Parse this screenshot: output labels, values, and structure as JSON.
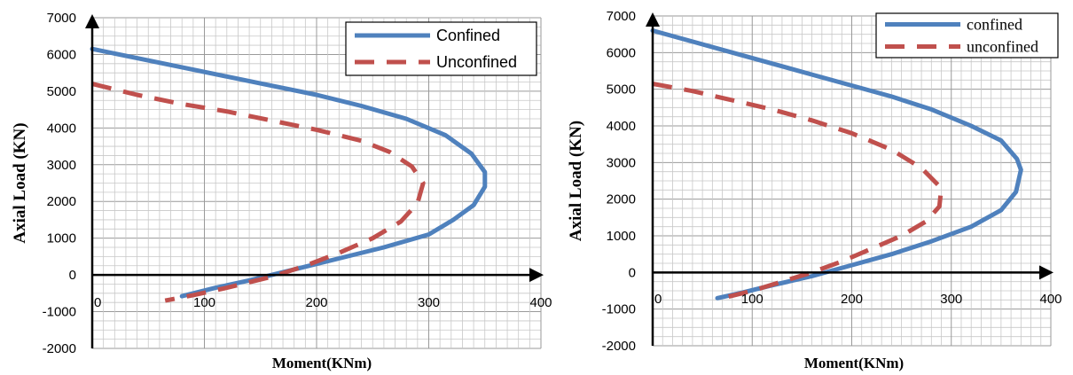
{
  "chart_data": [
    {
      "type": "line",
      "title": "",
      "xlabel": "Moment(KNm)",
      "ylabel": "Axial Load (KN)",
      "xlim": [
        0,
        400
      ],
      "ylim": [
        -2000,
        7000
      ],
      "xticks": [
        "0",
        "100",
        "200",
        "300",
        "400"
      ],
      "yticks": [
        "-2000",
        "-1000",
        "0",
        "1000",
        "2000",
        "3000",
        "4000",
        "5000",
        "6000",
        "7000"
      ],
      "grid": true,
      "legend_position": "top-right",
      "series": [
        {
          "name": "Confined",
          "color": "#4f81bd",
          "dash": "solid",
          "points": [
            [
              0,
              6150
            ],
            [
              40,
              5900
            ],
            [
              80,
              5650
            ],
            [
              120,
              5400
            ],
            [
              160,
              5150
            ],
            [
              200,
              4900
            ],
            [
              240,
              4600
            ],
            [
              280,
              4250
            ],
            [
              315,
              3800
            ],
            [
              338,
              3300
            ],
            [
              350,
              2800
            ],
            [
              350,
              2400
            ],
            [
              340,
              1900
            ],
            [
              322,
              1500
            ],
            [
              300,
              1100
            ],
            [
              260,
              750
            ],
            [
              220,
              450
            ],
            [
              180,
              150
            ],
            [
              140,
              -150
            ],
            [
              110,
              -350
            ],
            [
              80,
              -580
            ]
          ]
        },
        {
          "name": "Unconfined",
          "color": "#c0504d",
          "dash": "dashed",
          "points": [
            [
              0,
              5200
            ],
            [
              40,
              4900
            ],
            [
              80,
              4650
            ],
            [
              120,
              4450
            ],
            [
              160,
              4200
            ],
            [
              200,
              3950
            ],
            [
              240,
              3650
            ],
            [
              265,
              3350
            ],
            [
              285,
              2950
            ],
            [
              295,
              2500
            ],
            [
              290,
              1950
            ],
            [
              275,
              1450
            ],
            [
              250,
              1000
            ],
            [
              220,
              600
            ],
            [
              190,
              250
            ],
            [
              160,
              -50
            ],
            [
              120,
              -350
            ],
            [
              90,
              -550
            ],
            [
              65,
              -700
            ]
          ]
        }
      ]
    },
    {
      "type": "line",
      "title": "",
      "xlabel": "Moment(KNm)",
      "ylabel": "Axial Load (KN)",
      "xlim": [
        0,
        400
      ],
      "ylim": [
        -2000,
        7000
      ],
      "xticks": [
        "0",
        "100",
        "200",
        "300",
        "400"
      ],
      "yticks": [
        "-2000",
        "-1000",
        "0",
        "1000",
        "2000",
        "3000",
        "4000",
        "5000",
        "6000",
        "7000"
      ],
      "grid": true,
      "legend_position": "top-right",
      "series": [
        {
          "name": "confined",
          "color": "#4f81bd",
          "dash": "solid",
          "points": [
            [
              0,
              6600
            ],
            [
              40,
              6300
            ],
            [
              80,
              6000
            ],
            [
              120,
              5700
            ],
            [
              160,
              5400
            ],
            [
              200,
              5100
            ],
            [
              240,
              4800
            ],
            [
              280,
              4450
            ],
            [
              320,
              4000
            ],
            [
              350,
              3600
            ],
            [
              366,
              3100
            ],
            [
              370,
              2800
            ],
            [
              365,
              2200
            ],
            [
              350,
              1700
            ],
            [
              320,
              1250
            ],
            [
              280,
              850
            ],
            [
              240,
              500
            ],
            [
              200,
              200
            ],
            [
              160,
              -100
            ],
            [
              120,
              -350
            ],
            [
              90,
              -550
            ],
            [
              65,
              -700
            ]
          ]
        },
        {
          "name": "unconfined",
          "color": "#c0504d",
          "dash": "dashed",
          "points": [
            [
              0,
              5150
            ],
            [
              40,
              4950
            ],
            [
              80,
              4700
            ],
            [
              120,
              4450
            ],
            [
              160,
              4150
            ],
            [
              200,
              3800
            ],
            [
              240,
              3350
            ],
            [
              270,
              2850
            ],
            [
              290,
              2300
            ],
            [
              288,
              1800
            ],
            [
              275,
              1400
            ],
            [
              250,
              1000
            ],
            [
              220,
              650
            ],
            [
              190,
              300
            ],
            [
              160,
              0
            ],
            [
              130,
              -250
            ],
            [
              100,
              -500
            ],
            [
              70,
              -700
            ]
          ]
        }
      ]
    }
  ]
}
